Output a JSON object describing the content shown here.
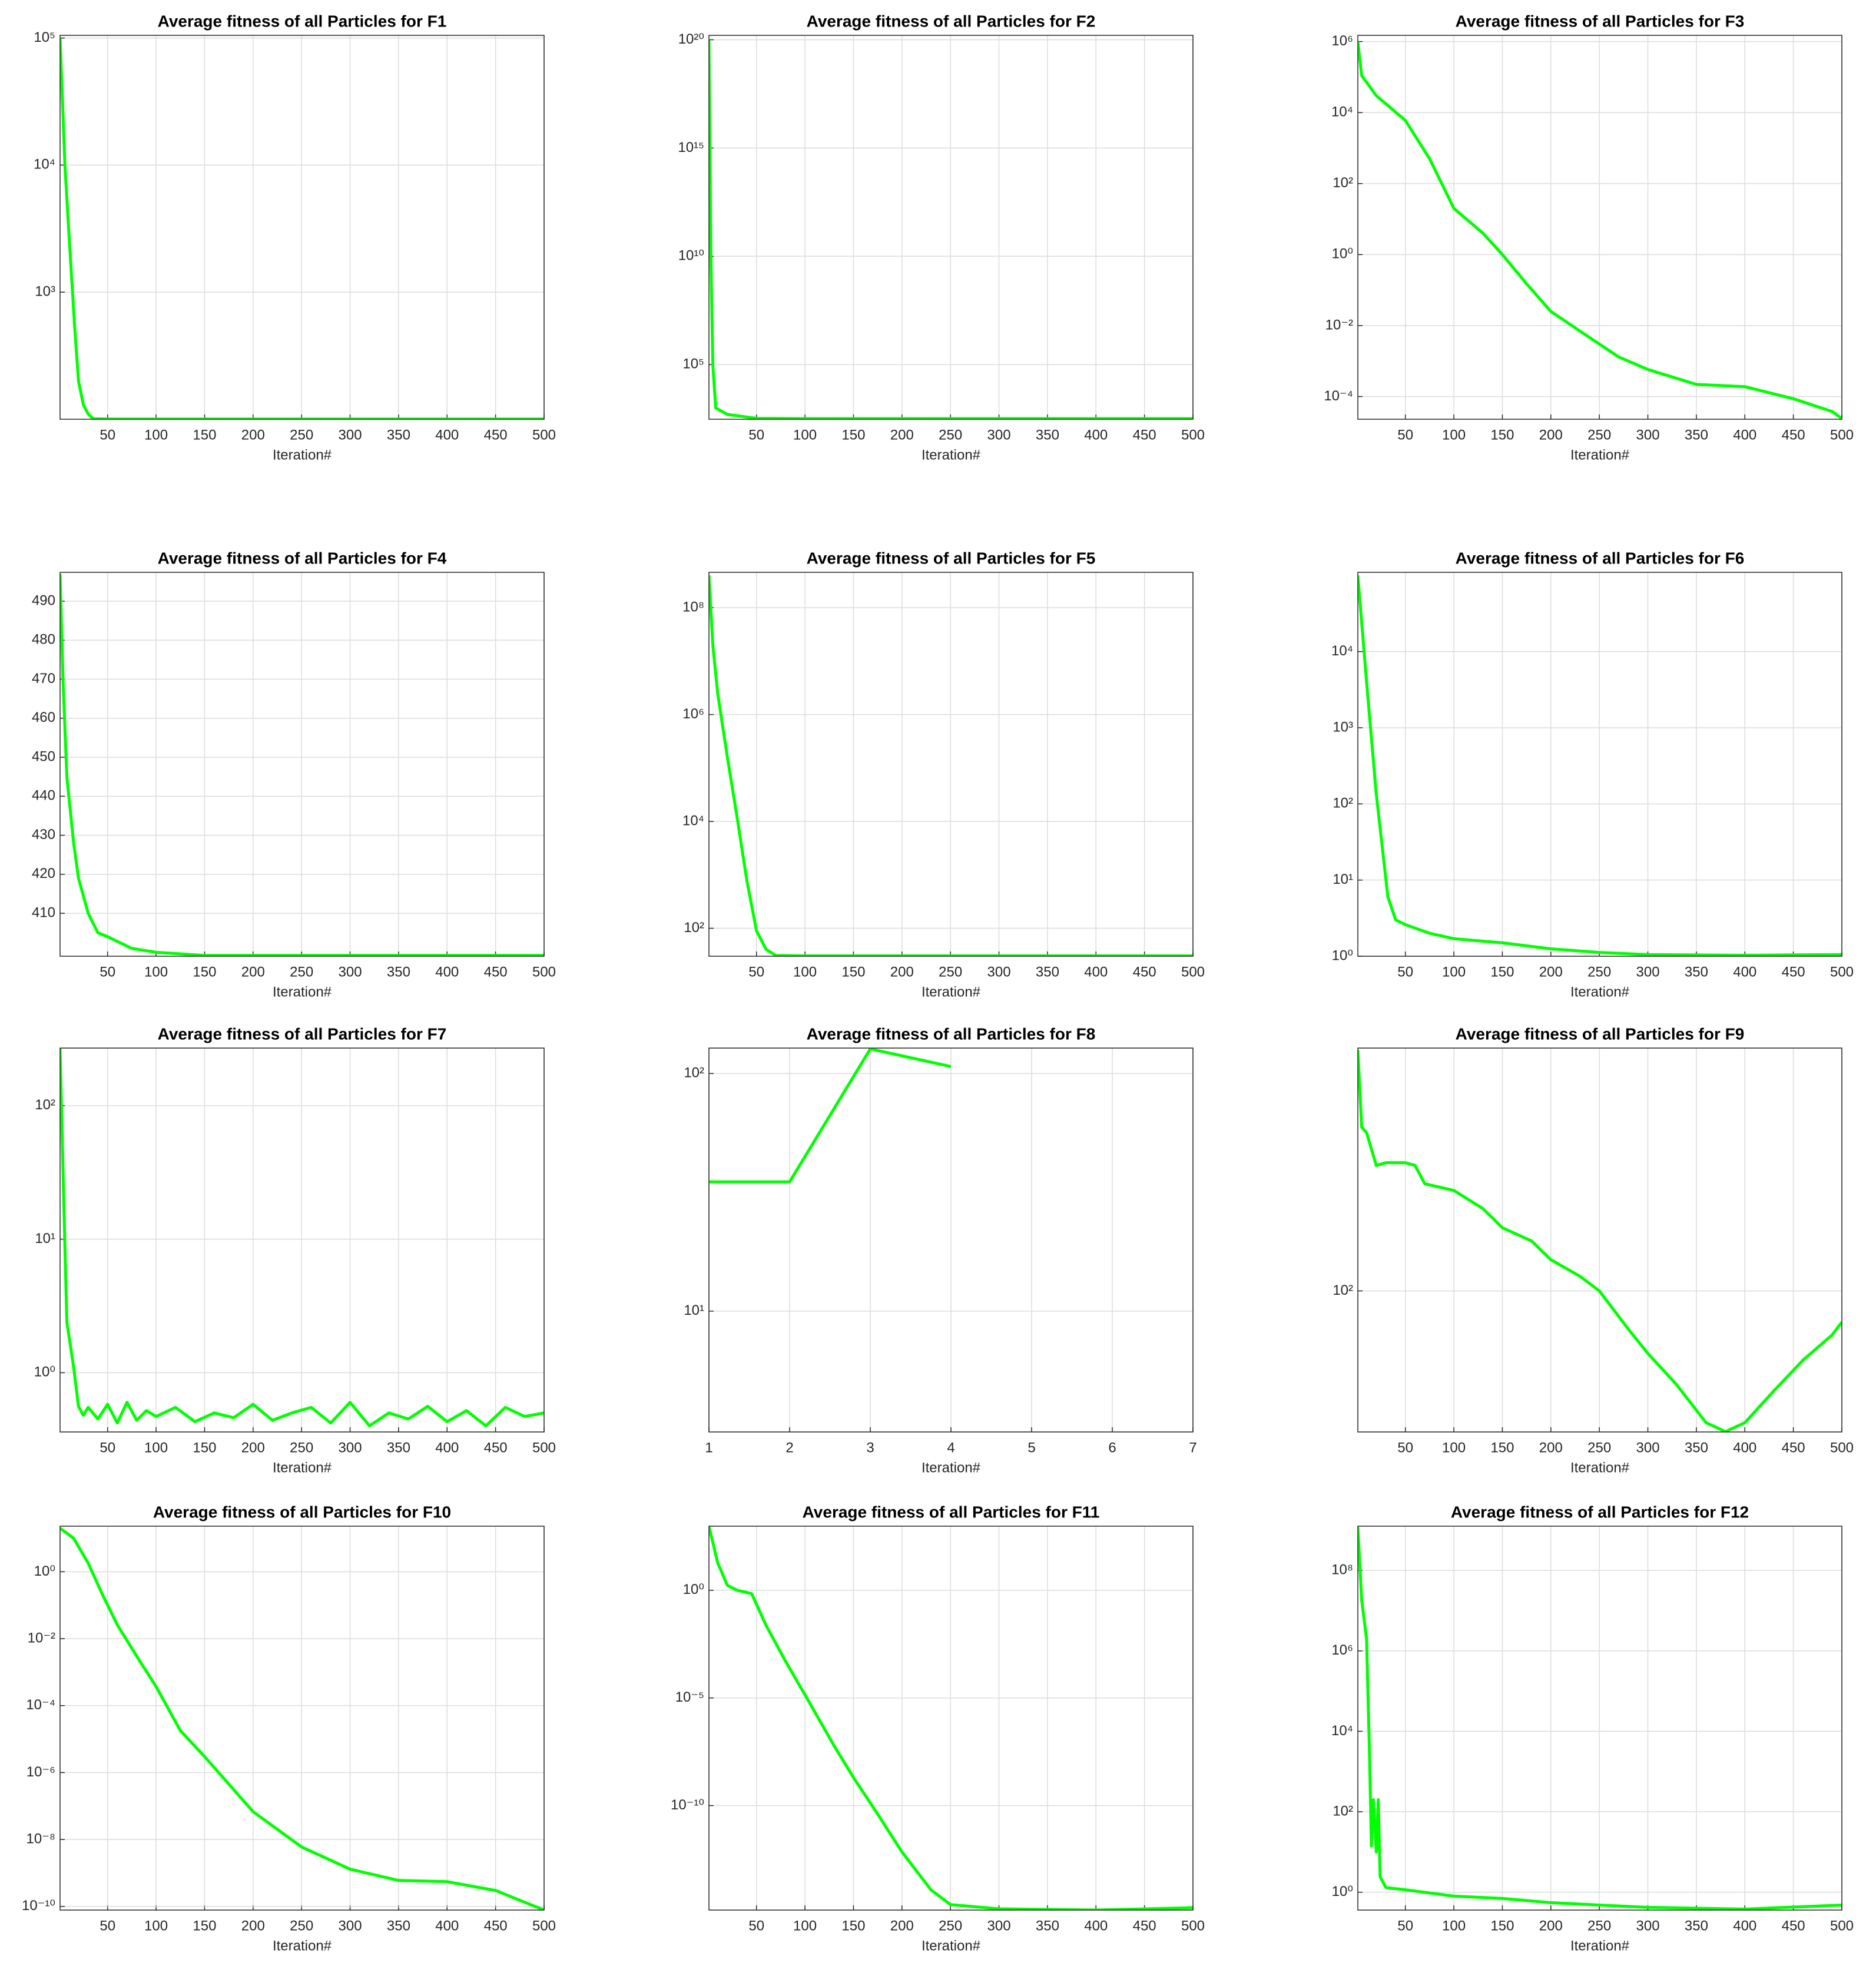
{
  "chart_data": [
    {
      "type": "line",
      "title": "Average fitness of all Particles for F1",
      "x_label": "Iteration#",
      "color": "#00ff00",
      "yscale": "log",
      "grid": true,
      "x": [
        1,
        3,
        6,
        10,
        16,
        20,
        25,
        30,
        35,
        50,
        100,
        200,
        300,
        400,
        500
      ],
      "values": [
        100000,
        40000,
        10000,
        3000,
        540,
        200,
        130,
        110,
        101,
        100.3,
        100.2,
        100.2,
        100.2,
        100.2,
        100.2
      ],
      "xlim": [
        1,
        500
      ],
      "xticks": [
        50,
        100,
        150,
        200,
        250,
        300,
        350,
        400,
        450,
        500
      ],
      "ylim": [
        100,
        105000
      ],
      "yticks": [
        {
          "value": 1000,
          "label": "10³"
        },
        {
          "value": 10000,
          "label": "10⁴"
        },
        {
          "value": 100000,
          "label": "10⁵"
        }
      ]
    },
    {
      "type": "line",
      "title": "Average fitness of all Particles for F2",
      "x_label": "Iteration#",
      "color": "#00ff00",
      "yscale": "log",
      "grid": true,
      "x": [
        1,
        3,
        5,
        8,
        20,
        50,
        100,
        200,
        300,
        400,
        500
      ],
      "values": [
        1e+20,
        10000000000.0,
        100000.0,
        1000,
        500,
        330,
        320,
        320,
        320,
        320,
        320
      ],
      "xlim": [
        1,
        500
      ],
      "xticks": [
        50,
        100,
        150,
        200,
        250,
        300,
        350,
        400,
        450,
        500
      ],
      "ylim": [
        300,
        1.6e+20
      ],
      "yticks": [
        {
          "value": 100000.0,
          "label": "10⁵"
        },
        {
          "value": 10000000000.0,
          "label": "10¹⁰"
        },
        {
          "value": 1000000000000000.0,
          "label": "10¹⁵"
        },
        {
          "value": 1e+20,
          "label": "10²⁰"
        }
      ]
    },
    {
      "type": "line",
      "title": "Average fitness of all Particles for F3",
      "x_label": "Iteration#",
      "color": "#00ff00",
      "yscale": "log",
      "grid": true,
      "x": [
        1,
        5,
        20,
        50,
        75,
        100,
        130,
        150,
        175,
        200,
        230,
        270,
        300,
        350,
        400,
        450,
        490,
        500
      ],
      "values": [
        1000000.0,
        110000.0,
        30000.0,
        6000,
        500,
        20,
        4,
        1,
        0.15,
        0.025,
        0.007,
        0.0013,
        0.00058,
        0.00022,
        0.00019,
        8.7e-05,
        3.8e-05,
        2.4e-05
      ],
      "xlim": [
        1,
        500
      ],
      "xticks": [
        50,
        100,
        150,
        200,
        250,
        300,
        350,
        400,
        450,
        500
      ],
      "ylim": [
        2.3e-05,
        1500000.0
      ],
      "yticks": [
        {
          "value": 0.0001,
          "label": "10⁻⁴"
        },
        {
          "value": 0.01,
          "label": "10⁻²"
        },
        {
          "value": 1,
          "label": "10⁰"
        },
        {
          "value": 100,
          "label": "10²"
        },
        {
          "value": 10000,
          "label": "10⁴"
        },
        {
          "value": 1000000.0,
          "label": "10⁶"
        }
      ]
    },
    {
      "type": "line",
      "title": "Average fitness of all Particles for F4",
      "x_label": "Iteration#",
      "color": "#00ff00",
      "yscale": "linear",
      "grid": true,
      "x": [
        1,
        4,
        8,
        15,
        20,
        30,
        40,
        50,
        75,
        100,
        150,
        200,
        300,
        400,
        500
      ],
      "values": [
        497,
        470,
        445,
        428,
        419,
        410,
        405,
        404,
        401,
        400,
        399.2,
        399.2,
        399.2,
        399.2,
        399.2
      ],
      "xlim": [
        1,
        500
      ],
      "xticks": [
        50,
        100,
        150,
        200,
        250,
        300,
        350,
        400,
        450,
        500
      ],
      "ylim": [
        399,
        497.4
      ],
      "yticks": [
        410,
        420,
        430,
        440,
        450,
        460,
        470,
        480,
        490
      ]
    },
    {
      "type": "line",
      "title": "Average fitness of all Particles for F5",
      "x_label": "Iteration#",
      "color": "#00ff00",
      "yscale": "log",
      "grid": true,
      "x": [
        1,
        5,
        10,
        20,
        30,
        40,
        50,
        60,
        70,
        100,
        200,
        300,
        400,
        500
      ],
      "values": [
        400000000.0,
        20000000.0,
        2500000.0,
        160000.0,
        12000.0,
        800,
        90,
        40,
        31,
        30.5,
        30.5,
        30.5,
        30.5,
        30.5
      ],
      "xlim": [
        1,
        500
      ],
      "xticks": [
        50,
        100,
        150,
        200,
        250,
        300,
        350,
        400,
        450,
        500
      ],
      "ylim": [
        30,
        460000000.0
      ],
      "yticks": [
        {
          "value": 100,
          "label": "10²"
        },
        {
          "value": 10000,
          "label": "10⁴"
        },
        {
          "value": 1000000.0,
          "label": "10⁶"
        },
        {
          "value": 100000000.0,
          "label": "10⁸"
        }
      ]
    },
    {
      "type": "line",
      "title": "Average fitness of all Particles for F6",
      "x_label": "Iteration#",
      "color": "#00ff00",
      "yscale": "log",
      "grid": true,
      "x": [
        1,
        10,
        20,
        32,
        40,
        50,
        75,
        100,
        150,
        200,
        250,
        300,
        400,
        500
      ],
      "values": [
        100000.0,
        4000,
        135,
        6,
        3,
        2.6,
        2,
        1.7,
        1.5,
        1.25,
        1.12,
        1.05,
        1.03,
        1.05
      ],
      "xlim": [
        1,
        500
      ],
      "xticks": [
        50,
        100,
        150,
        200,
        250,
        300,
        350,
        400,
        450,
        500
      ],
      "ylim": [
        1,
        110000
      ],
      "yticks": [
        {
          "value": 1,
          "label": "10⁰"
        },
        {
          "value": 10,
          "label": "10¹"
        },
        {
          "value": 100,
          "label": "10²"
        },
        {
          "value": 1000,
          "label": "10³"
        },
        {
          "value": 10000,
          "label": "10⁴"
        }
      ]
    },
    {
      "type": "line",
      "title": "Average fitness of all Particles for F7",
      "x_label": "Iteration#",
      "color": "#00ff00",
      "yscale": "log",
      "grid": true,
      "x": [
        1,
        5,
        8,
        15,
        20,
        25,
        30,
        40,
        50,
        60,
        70,
        80,
        90,
        100,
        120,
        140,
        160,
        180,
        200,
        220,
        240,
        260,
        280,
        300,
        320,
        340,
        360,
        380,
        400,
        420,
        440,
        460,
        480,
        500
      ],
      "values": [
        270,
        17,
        2.4,
        1.1,
        0.56,
        0.48,
        0.55,
        0.45,
        0.58,
        0.42,
        0.6,
        0.44,
        0.52,
        0.47,
        0.55,
        0.43,
        0.5,
        0.46,
        0.58,
        0.44,
        0.5,
        0.55,
        0.42,
        0.6,
        0.4,
        0.5,
        0.45,
        0.56,
        0.43,
        0.52,
        0.4,
        0.55,
        0.47,
        0.5
      ],
      "xlim": [
        1,
        500
      ],
      "xticks": [
        50,
        100,
        150,
        200,
        250,
        300,
        350,
        400,
        450,
        500
      ],
      "ylim": [
        0.36,
        270
      ],
      "yticks": [
        {
          "value": 1,
          "label": "10⁰"
        },
        {
          "value": 10,
          "label": "10¹"
        },
        {
          "value": 100,
          "label": "10²"
        }
      ]
    },
    {
      "type": "line",
      "title": "Average fitness of all Particles for F8",
      "x_label": "Iteration#",
      "color": "#00ff00",
      "yscale": "log",
      "grid": true,
      "x": [
        1,
        2,
        3,
        4
      ],
      "values": [
        35,
        35,
        127,
        107
      ],
      "xlim": [
        1,
        7
      ],
      "xticks": [
        1,
        2,
        3,
        4,
        5,
        6,
        7
      ],
      "ylim": [
        3.1,
        128
      ],
      "yticks": [
        {
          "value": 10,
          "label": "10¹"
        },
        {
          "value": 100,
          "label": "10²"
        }
      ]
    },
    {
      "type": "line",
      "title": "Average fitness of all Particles for F9",
      "x_label": "Iteration#",
      "color": "#00ff00",
      "yscale": "log",
      "grid": true,
      "x": [
        1,
        5,
        10,
        20,
        30,
        50,
        60,
        70,
        100,
        130,
        150,
        180,
        200,
        230,
        250,
        280,
        300,
        330,
        360,
        380,
        400,
        430,
        460,
        490,
        500
      ],
      "values": [
        560,
        322,
        310,
        245,
        250,
        250,
        245,
        215,
        205,
        180,
        157,
        143,
        125,
        111,
        100,
        76,
        64,
        51,
        39,
        36.6,
        39,
        49,
        61,
        73,
        80
      ],
      "xlim": [
        1,
        500
      ],
      "xticks": [
        50,
        100,
        150,
        200,
        250,
        300,
        350,
        400,
        450,
        500
      ],
      "ylim": [
        36.5,
        567
      ],
      "yticks": [
        {
          "value": 100,
          "label": "10²"
        }
      ]
    },
    {
      "type": "line",
      "title": "Average fitness of all Particles for F10",
      "x_label": "Iteration#",
      "color": "#00ff00",
      "yscale": "log",
      "grid": true,
      "x": [
        1,
        15,
        30,
        45,
        60,
        80,
        100,
        125,
        150,
        200,
        250,
        300,
        350,
        400,
        450,
        500
      ],
      "values": [
        20,
        10,
        1.8,
        0.2,
        0.026,
        0.003,
        0.00037,
        1.8e-05,
        3e-06,
        6.8e-08,
        6e-09,
        1.3e-09,
        6e-10,
        5.5e-10,
        3e-10,
        7.8e-11
      ],
      "xlim": [
        1,
        500
      ],
      "xticks": [
        50,
        100,
        150,
        200,
        250,
        300,
        350,
        400,
        450,
        500
      ],
      "ylim": [
        7.8e-11,
        23
      ],
      "yticks": [
        {
          "value": 1e-10,
          "label": "10⁻¹⁰"
        },
        {
          "value": 1e-08,
          "label": "10⁻⁸"
        },
        {
          "value": 1e-06,
          "label": "10⁻⁶"
        },
        {
          "value": 0.0001,
          "label": "10⁻⁴"
        },
        {
          "value": 0.01,
          "label": "10⁻²"
        },
        {
          "value": 1,
          "label": "10⁰"
        }
      ]
    },
    {
      "type": "line",
      "title": "Average fitness of all Particles for F11",
      "x_label": "Iteration#",
      "color": "#00ff00",
      "yscale": "log",
      "grid": true,
      "x": [
        1,
        10,
        20,
        30,
        45,
        60,
        80,
        100,
        130,
        150,
        175,
        200,
        230,
        250,
        300,
        400,
        500
      ],
      "values": [
        950,
        19,
        1.7,
        1,
        0.7,
        0.023,
        0.0005,
        1.4e-05,
        6e-08,
        2e-09,
        4e-11,
        7e-13,
        1.2e-14,
        2.5e-15,
        1.6e-15,
        1.4e-15,
        1.8e-15
      ],
      "xlim": [
        1,
        500
      ],
      "xticks": [
        50,
        100,
        150,
        200,
        250,
        300,
        350,
        400,
        450,
        500
      ],
      "ylim": [
        1.4e-15,
        950
      ],
      "yticks": [
        {
          "value": 1e-10,
          "label": "10⁻¹⁰"
        },
        {
          "value": 1e-05,
          "label": "10⁻⁵"
        },
        {
          "value": 1,
          "label": "10⁰"
        }
      ]
    },
    {
      "type": "line",
      "title": "Average fitness of all Particles for F12",
      "x_label": "Iteration#",
      "color": "#00ff00",
      "yscale": "log",
      "grid": true,
      "x": [
        1,
        5,
        10,
        13,
        15,
        17,
        20,
        22,
        24,
        30,
        50,
        100,
        150,
        200,
        250,
        300,
        400,
        500
      ],
      "values": [
        1200000000.0,
        18000000.0,
        2000000.0,
        3000,
        14,
        200,
        10,
        200,
        2.4,
        1.3,
        1.15,
        0.8,
        0.7,
        0.55,
        0.48,
        0.42,
        0.38,
        0.48
      ],
      "xlim": [
        1,
        500
      ],
      "xticks": [
        50,
        100,
        150,
        200,
        250,
        300,
        350,
        400,
        450,
        500
      ],
      "ylim": [
        0.36,
        1260000000.0
      ],
      "yticks": [
        {
          "value": 1,
          "label": "10⁰"
        },
        {
          "value": 100,
          "label": "10²"
        },
        {
          "value": 10000,
          "label": "10⁴"
        },
        {
          "value": 1000000.0,
          "label": "10⁶"
        },
        {
          "value": 100000000.0,
          "label": "10⁸"
        }
      ]
    }
  ]
}
